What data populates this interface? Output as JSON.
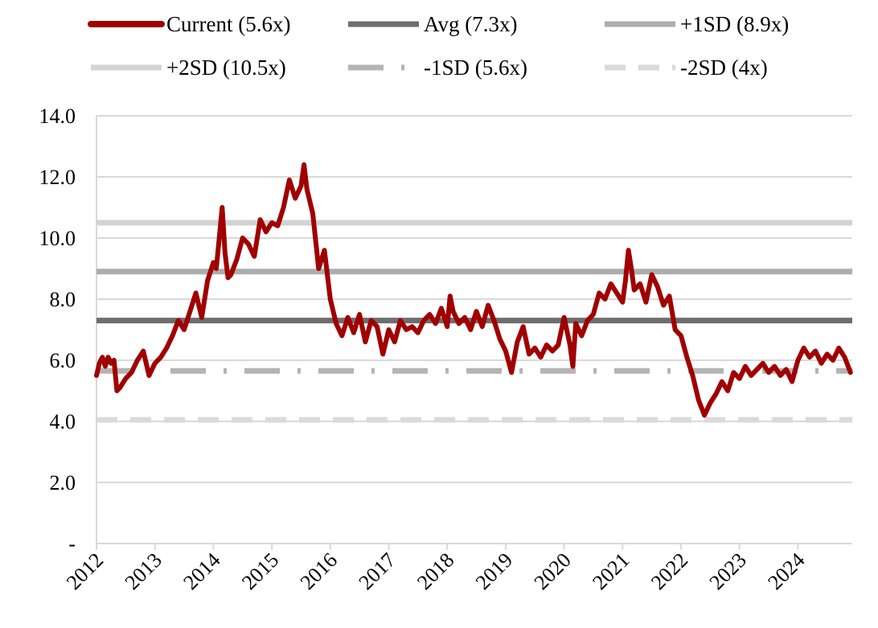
{
  "chart_data": {
    "type": "line",
    "title": "",
    "xlabel": "",
    "ylabel": "",
    "xlim": [
      2012.0,
      2024.93
    ],
    "ylim": [
      0,
      14
    ],
    "grid": "horizontal",
    "legend_position": "top",
    "x_ticks": [
      2012,
      2013,
      2014,
      2015,
      2016,
      2017,
      2018,
      2019,
      2020,
      2021,
      2022,
      2023,
      2024
    ],
    "x_tick_labels": [
      "2012",
      "2013",
      "2014",
      "2015",
      "2016",
      "2017",
      "2018",
      "2019",
      "2020",
      "2021",
      "2022",
      "2023",
      "2024"
    ],
    "y_ticks": [
      0,
      2,
      4,
      6,
      8,
      10,
      12,
      14
    ],
    "y_tick_labels": [
      "-",
      "2.0",
      "4.0",
      "6.0",
      "8.0",
      "10.0",
      "12.0",
      "14.0"
    ],
    "series": [
      {
        "name": "Current (5.6x)",
        "color": "#a00000",
        "style": "solid-thick",
        "x": [
          2012.0,
          2012.05,
          2012.1,
          2012.15,
          2012.2,
          2012.25,
          2012.3,
          2012.35,
          2012.4,
          2012.5,
          2012.6,
          2012.7,
          2012.8,
          2012.9,
          2013.0,
          2013.1,
          2013.2,
          2013.3,
          2013.4,
          2013.5,
          2013.6,
          2013.7,
          2013.8,
          2013.9,
          2014.0,
          2014.05,
          2014.1,
          2014.15,
          2014.2,
          2014.25,
          2014.3,
          2014.4,
          2014.5,
          2014.6,
          2014.7,
          2014.8,
          2014.9,
          2015.0,
          2015.1,
          2015.2,
          2015.3,
          2015.4,
          2015.5,
          2015.55,
          2015.6,
          2015.7,
          2015.8,
          2015.9,
          2016.0,
          2016.1,
          2016.2,
          2016.3,
          2016.4,
          2016.5,
          2016.6,
          2016.7,
          2016.8,
          2016.9,
          2017.0,
          2017.1,
          2017.2,
          2017.3,
          2017.4,
          2017.5,
          2017.6,
          2017.7,
          2017.8,
          2017.9,
          2018.0,
          2018.05,
          2018.1,
          2018.2,
          2018.3,
          2018.4,
          2018.5,
          2018.6,
          2018.7,
          2018.8,
          2018.9,
          2019.0,
          2019.1,
          2019.2,
          2019.3,
          2019.4,
          2019.5,
          2019.6,
          2019.7,
          2019.8,
          2019.9,
          2020.0,
          2020.1,
          2020.15,
          2020.2,
          2020.3,
          2020.4,
          2020.5,
          2020.6,
          2020.7,
          2020.8,
          2020.9,
          2021.0,
          2021.05,
          2021.1,
          2021.15,
          2021.2,
          2021.3,
          2021.4,
          2021.5,
          2021.6,
          2021.7,
          2021.8,
          2021.9,
          2022.0,
          2022.1,
          2022.2,
          2022.3,
          2022.4,
          2022.5,
          2022.6,
          2022.7,
          2022.8,
          2022.9,
          2023.0,
          2023.1,
          2023.2,
          2023.3,
          2023.4,
          2023.5,
          2023.6,
          2023.7,
          2023.8,
          2023.9,
          2024.0,
          2024.1,
          2024.2,
          2024.3,
          2024.4,
          2024.5,
          2024.6,
          2024.7,
          2024.8,
          2024.9
        ],
        "y": [
          5.5,
          5.9,
          6.1,
          5.8,
          6.1,
          5.9,
          6.0,
          5.0,
          5.1,
          5.4,
          5.6,
          6.0,
          6.3,
          5.5,
          5.9,
          6.1,
          6.4,
          6.8,
          7.3,
          7.0,
          7.6,
          8.2,
          7.4,
          8.6,
          9.2,
          9.0,
          10.0,
          11.0,
          9.5,
          8.7,
          8.8,
          9.3,
          10.0,
          9.8,
          9.4,
          10.6,
          10.2,
          10.5,
          10.4,
          11.0,
          11.9,
          11.3,
          11.7,
          12.4,
          11.6,
          10.8,
          9.0,
          9.6,
          8.0,
          7.2,
          6.8,
          7.4,
          6.9,
          7.5,
          6.6,
          7.3,
          7.1,
          6.2,
          7.0,
          6.6,
          7.3,
          7.0,
          7.1,
          6.9,
          7.3,
          7.5,
          7.2,
          7.7,
          7.1,
          8.1,
          7.6,
          7.2,
          7.4,
          7.0,
          7.6,
          7.1,
          7.8,
          7.3,
          6.7,
          6.3,
          5.6,
          6.6,
          7.1,
          6.2,
          6.4,
          6.1,
          6.5,
          6.3,
          6.5,
          7.4,
          6.5,
          5.8,
          7.2,
          6.8,
          7.3,
          7.5,
          8.2,
          8.0,
          8.5,
          8.2,
          7.9,
          8.6,
          9.6,
          9.0,
          8.3,
          8.5,
          7.9,
          8.8,
          8.4,
          7.8,
          8.1,
          7.0,
          6.8,
          6.1,
          5.5,
          4.7,
          4.2,
          4.6,
          4.9,
          5.3,
          5.0,
          5.6,
          5.4,
          5.8,
          5.5,
          5.7,
          5.9,
          5.6,
          5.8,
          5.5,
          5.7,
          5.3,
          6.0,
          6.4,
          6.1,
          6.3,
          5.9,
          6.2,
          6.0,
          6.4,
          6.1,
          5.6
        ]
      },
      {
        "name": "Avg (7.3x)",
        "color": "#6e6e6e",
        "style": "solid",
        "value": 7.3
      },
      {
        "name": "+1SD (8.9x)",
        "color": "#adadad",
        "style": "solid",
        "value": 8.9
      },
      {
        "name": "+2SD (10.5x)",
        "color": "#d3d3d3",
        "style": "solid",
        "value": 10.5
      },
      {
        "name": "-1SD (5.6x)",
        "color": "#b4b4b4",
        "style": "dash-dot",
        "value": 5.65
      },
      {
        "name": "-2SD (4x)",
        "color": "#dadada",
        "style": "dash",
        "value": 4.05
      }
    ]
  }
}
